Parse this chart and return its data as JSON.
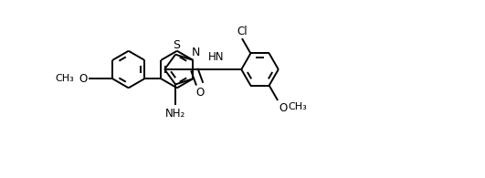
{
  "background_color": "#ffffff",
  "line_color": "#000000",
  "line_width": 1.4,
  "font_size": 8.5,
  "fig_width": 5.31,
  "fig_height": 1.95,
  "dpi": 100,
  "xlim": [
    -0.5,
    10.5
  ],
  "ylim": [
    -1.5,
    3.5
  ]
}
